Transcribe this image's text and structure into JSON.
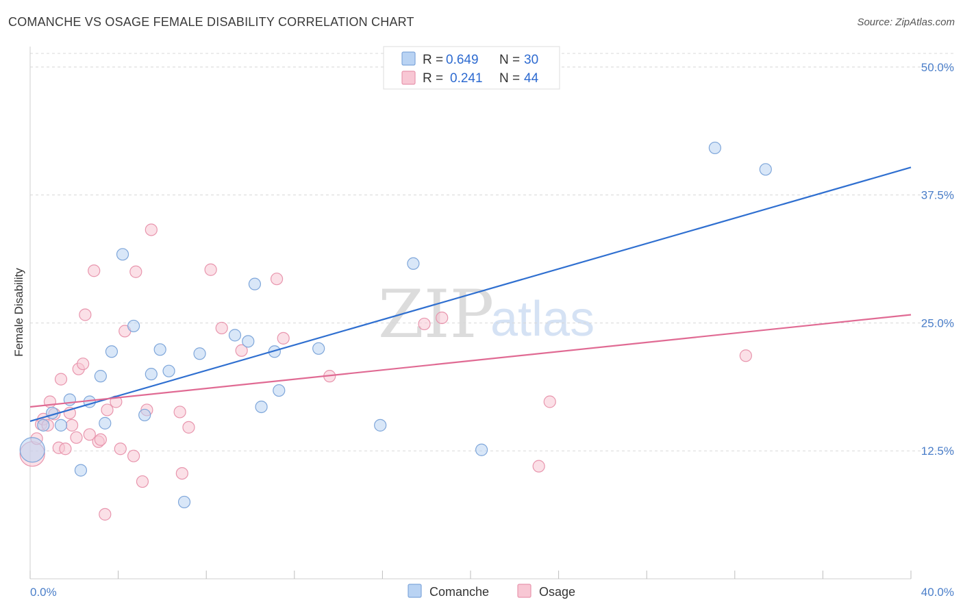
{
  "header": {
    "title": "COMANCHE VS OSAGE FEMALE DISABILITY CORRELATION CHART",
    "source": "Source: ZipAtlas.com"
  },
  "watermark": {
    "part1": "ZIP",
    "part2": "atlas"
  },
  "colors": {
    "comanche_fill": "#b9d3f3",
    "comanche_stroke": "#7ea6da",
    "comanche_line": "#2f6fd0",
    "osage_fill": "#f8c7d4",
    "osage_stroke": "#e895ad",
    "osage_line": "#e06a93",
    "tick_text": "#4a7ec9",
    "grid": "#d8d8d8"
  },
  "legend": {
    "rows": [
      {
        "r_label": "R =",
        "r_value": "0.649",
        "n_label": "N =",
        "n_value": "30"
      },
      {
        "r_label": "R =",
        "r_value": "0.241",
        "n_label": "N =",
        "n_value": "44"
      }
    ]
  },
  "chart_data": {
    "type": "scatter",
    "title": "COMANCHE VS OSAGE FEMALE DISABILITY CORRELATION CHART",
    "xlabel": "",
    "ylabel": "Female Disability",
    "xlim": [
      0,
      40
    ],
    "ylim": [
      0,
      52
    ],
    "x_tick_labels": [
      "0.0%",
      "40.0%"
    ],
    "y_ticks": [
      12.5,
      25.0,
      37.5,
      50.0
    ],
    "y_tick_labels": [
      "12.5%",
      "25.0%",
      "37.5%",
      "50.0%"
    ],
    "grid": "horizontal dashed",
    "legend_position": "top-center",
    "series": [
      {
        "name": "Comanche",
        "r": 0.649,
        "n": 30,
        "trend": {
          "x": [
            0,
            40
          ],
          "y": [
            15.4,
            40.2
          ]
        },
        "points": [
          [
            0.1,
            12.6
          ],
          [
            0.6,
            15.0
          ],
          [
            1.0,
            16.2
          ],
          [
            1.4,
            15.0
          ],
          [
            1.8,
            17.5
          ],
          [
            2.3,
            10.6
          ],
          [
            2.7,
            17.3
          ],
          [
            3.2,
            19.8
          ],
          [
            3.4,
            15.2
          ],
          [
            3.7,
            22.2
          ],
          [
            4.2,
            31.7
          ],
          [
            4.7,
            24.7
          ],
          [
            5.2,
            16.0
          ],
          [
            5.5,
            20.0
          ],
          [
            5.9,
            22.4
          ],
          [
            6.3,
            20.3
          ],
          [
            7.0,
            7.5
          ],
          [
            7.7,
            22.0
          ],
          [
            9.3,
            23.8
          ],
          [
            9.9,
            23.2
          ],
          [
            10.2,
            28.8
          ],
          [
            10.5,
            16.8
          ],
          [
            11.1,
            22.2
          ],
          [
            11.3,
            18.4
          ],
          [
            13.1,
            22.5
          ],
          [
            15.9,
            15.0
          ],
          [
            17.4,
            30.8
          ],
          [
            20.5,
            12.6
          ],
          [
            31.1,
            42.1
          ],
          [
            33.4,
            40.0
          ]
        ]
      },
      {
        "name": "Osage",
        "r": 0.241,
        "n": 44,
        "trend": {
          "x": [
            0,
            40
          ],
          "y": [
            16.8,
            25.8
          ]
        },
        "points": [
          [
            0.1,
            12.2
          ],
          [
            0.3,
            13.7
          ],
          [
            0.5,
            15.1
          ],
          [
            0.6,
            15.6
          ],
          [
            0.8,
            15.0
          ],
          [
            0.9,
            17.3
          ],
          [
            1.1,
            16.1
          ],
          [
            1.3,
            12.8
          ],
          [
            1.4,
            19.5
          ],
          [
            1.6,
            12.7
          ],
          [
            1.8,
            16.2
          ],
          [
            1.9,
            15.0
          ],
          [
            2.1,
            13.8
          ],
          [
            2.2,
            20.5
          ],
          [
            2.4,
            21.0
          ],
          [
            2.5,
            25.8
          ],
          [
            2.7,
            14.1
          ],
          [
            2.9,
            30.1
          ],
          [
            3.1,
            13.4
          ],
          [
            3.2,
            13.6
          ],
          [
            3.4,
            6.3
          ],
          [
            3.5,
            16.5
          ],
          [
            3.9,
            17.3
          ],
          [
            4.1,
            12.7
          ],
          [
            4.3,
            24.2
          ],
          [
            4.7,
            12.0
          ],
          [
            4.8,
            30.0
          ],
          [
            5.1,
            9.5
          ],
          [
            5.3,
            16.5
          ],
          [
            5.5,
            34.1
          ],
          [
            6.8,
            16.3
          ],
          [
            6.9,
            10.3
          ],
          [
            7.2,
            14.8
          ],
          [
            8.2,
            30.2
          ],
          [
            8.7,
            24.5
          ],
          [
            9.6,
            22.3
          ],
          [
            11.2,
            29.3
          ],
          [
            11.5,
            23.5
          ],
          [
            13.6,
            19.8
          ],
          [
            17.9,
            24.9
          ],
          [
            18.7,
            25.5
          ],
          [
            23.1,
            11.0
          ],
          [
            23.6,
            17.3
          ],
          [
            32.5,
            21.8
          ]
        ]
      }
    ]
  }
}
